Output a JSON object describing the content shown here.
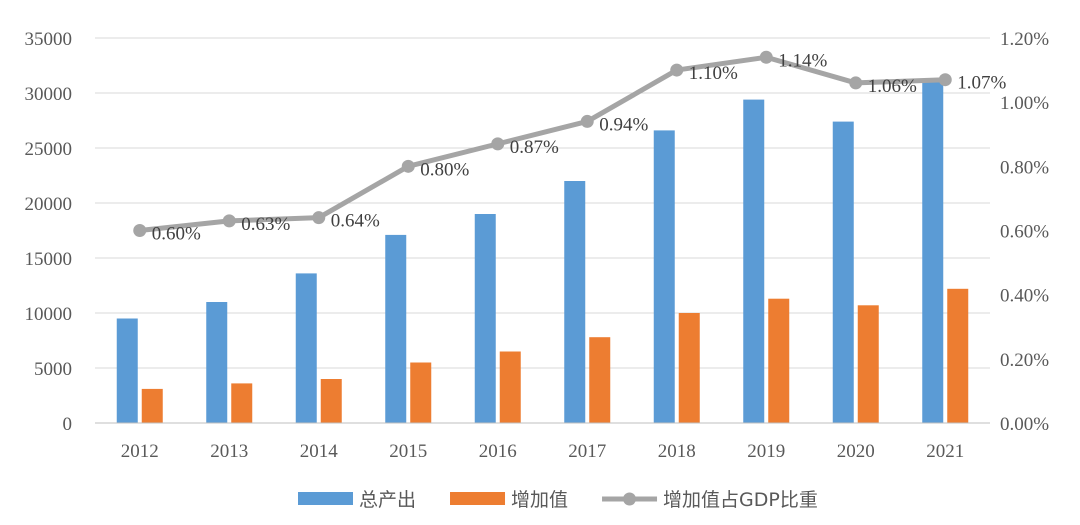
{
  "chart_data": {
    "type": "bar",
    "categories": [
      "2012",
      "2013",
      "2014",
      "2015",
      "2016",
      "2017",
      "2018",
      "2019",
      "2020",
      "2021"
    ],
    "series": [
      {
        "name": "总产出",
        "type": "bar",
        "axis": "left",
        "color": "#5b9bd5",
        "values": [
          9500,
          11000,
          13600,
          17100,
          19000,
          22000,
          26600,
          29400,
          27400,
          31000
        ]
      },
      {
        "name": "增加值",
        "type": "bar",
        "axis": "left",
        "color": "#ed7d31",
        "values": [
          3100,
          3600,
          4000,
          5500,
          6500,
          7800,
          10000,
          11300,
          10700,
          12200
        ]
      },
      {
        "name": "增加值占GDP比重",
        "type": "line",
        "axis": "right",
        "color": "#a5a5a5",
        "values": [
          0.6,
          0.63,
          0.64,
          0.8,
          0.87,
          0.94,
          1.1,
          1.14,
          1.06,
          1.07
        ],
        "labels": [
          "0.60%",
          "0.63%",
          "0.64%",
          "0.80%",
          "0.87%",
          "0.94%",
          "1.10%",
          "1.14%",
          "1.06%",
          "1.07%"
        ]
      }
    ],
    "y_left": {
      "min": 0,
      "max": 35000,
      "ticks": [
        "0",
        "5000",
        "10000",
        "15000",
        "20000",
        "25000",
        "30000",
        "35000"
      ]
    },
    "y_right": {
      "min": 0,
      "max": 1.2,
      "ticks": [
        "0.00%",
        "0.20%",
        "0.40%",
        "0.60%",
        "0.80%",
        "1.00%",
        "1.20%"
      ]
    },
    "grid": true,
    "legend_position": "bottom"
  }
}
